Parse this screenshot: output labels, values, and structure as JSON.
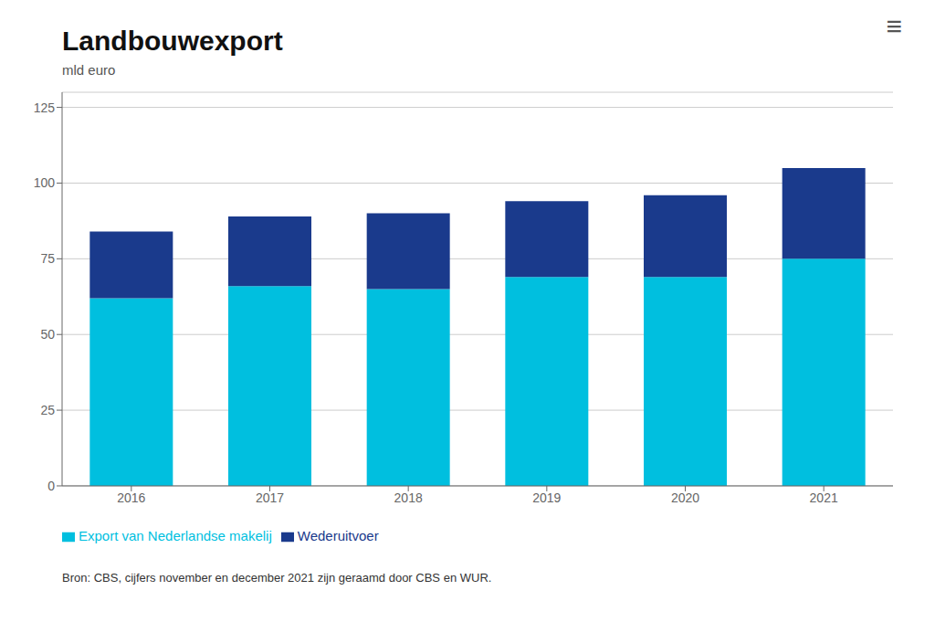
{
  "chart_data": {
    "type": "bar",
    "title": "Landbouwexport",
    "y_label": "mld euro",
    "categories": [
      "2016",
      "2017",
      "2018",
      "2019",
      "2020",
      "2021"
    ],
    "series": [
      {
        "name": "Export van Nederlandse makelij",
        "color": "#00BFDF",
        "values": [
          62,
          66,
          65,
          69,
          69,
          75
        ]
      },
      {
        "name": "Wederuitvoer",
        "color": "#1A3A8C",
        "values": [
          22,
          23,
          25,
          25,
          27,
          30
        ]
      }
    ],
    "stacked": true,
    "ylim": [
      0,
      130
    ],
    "yticks": [
      0,
      25,
      50,
      75,
      100,
      125
    ],
    "grid": true,
    "legend": "bottom",
    "annotations": [
      "Bron: CBS, cijfers november en december 2021 zijn geraamd door CBS en WUR.",
      "≡"
    ]
  }
}
